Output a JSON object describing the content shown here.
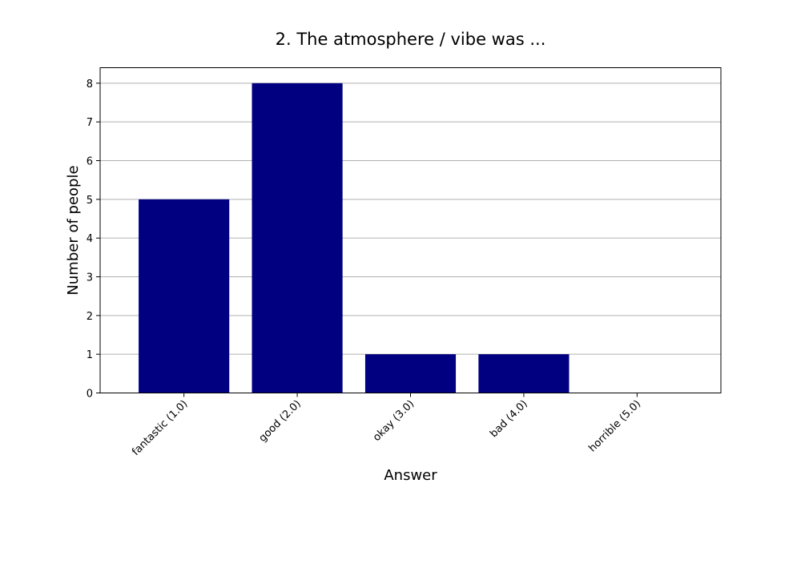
{
  "chart_data": {
    "type": "bar",
    "title": "2. The atmosphere / vibe was ...",
    "xlabel": "Answer",
    "ylabel": "Number of people",
    "categories": [
      "fantastic (1.0)",
      "good (2.0)",
      "okay (3.0)",
      "bad (4.0)",
      "horrible (5.0)"
    ],
    "values": [
      5,
      8,
      1,
      1,
      0
    ],
    "ylim": [
      0,
      8.4
    ],
    "yticks": [
      0,
      1,
      2,
      3,
      4,
      5,
      6,
      7,
      8
    ],
    "grid": "horizontal",
    "bar_color": "#000080",
    "grid_color": "#b0b0b0"
  }
}
